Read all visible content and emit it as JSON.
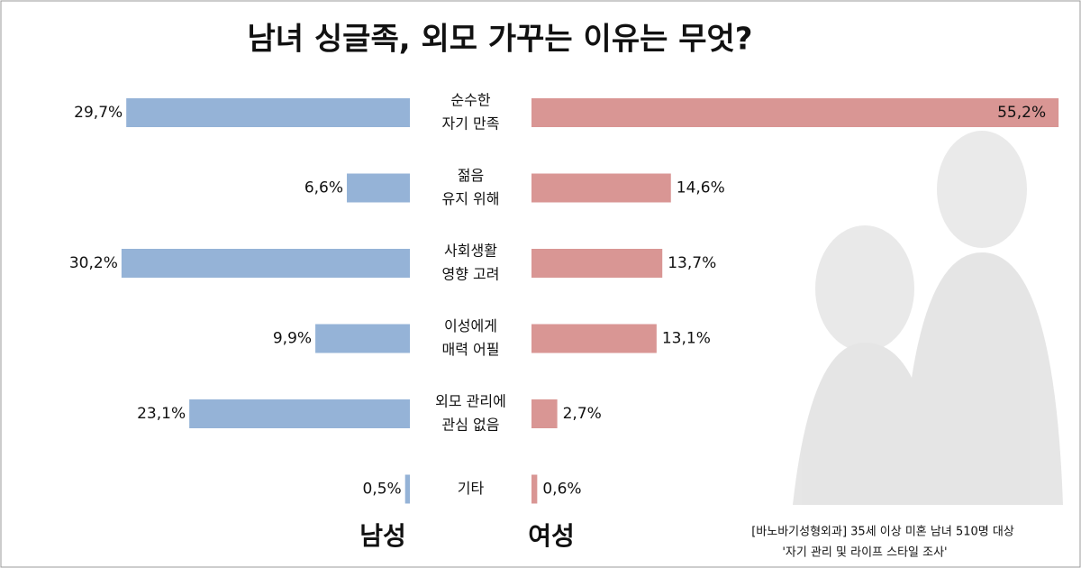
{
  "chart_data": {
    "type": "butterfly",
    "title": "남녀 싱글족, 외모 가꾸는 이유는 무엇?",
    "categories": [
      [
        "순수한",
        "자기 만족"
      ],
      [
        "젊음",
        "유지 위해"
      ],
      [
        "사회생활",
        "영향 고려"
      ],
      [
        "이성에게",
        "매력 어필"
      ],
      [
        "외모 관리에",
        "관심 없음"
      ],
      [
        "기타"
      ]
    ],
    "series": [
      {
        "name": "남성",
        "color": "#95b3d7",
        "values": [
          29.7,
          6.6,
          30.2,
          9.9,
          23.1,
          0.5
        ],
        "value_labels": [
          "29,7%",
          "6,6%",
          "30,2%",
          "9,9%",
          "23,1%",
          "0,5%"
        ]
      },
      {
        "name": "여성",
        "color": "#d99694",
        "values": [
          55.2,
          14.6,
          13.7,
          13.1,
          2.7,
          0.6
        ],
        "value_labels": [
          "55,2%",
          "14,6%",
          "13,7%",
          "13,1%",
          "2,7%",
          "0,6%"
        ]
      }
    ],
    "source": [
      "[바노바기성형외과] 35세 이상 미혼 남녀 510명 대상",
      "'자기 관리 및 라이프 스타일 조사'"
    ]
  }
}
